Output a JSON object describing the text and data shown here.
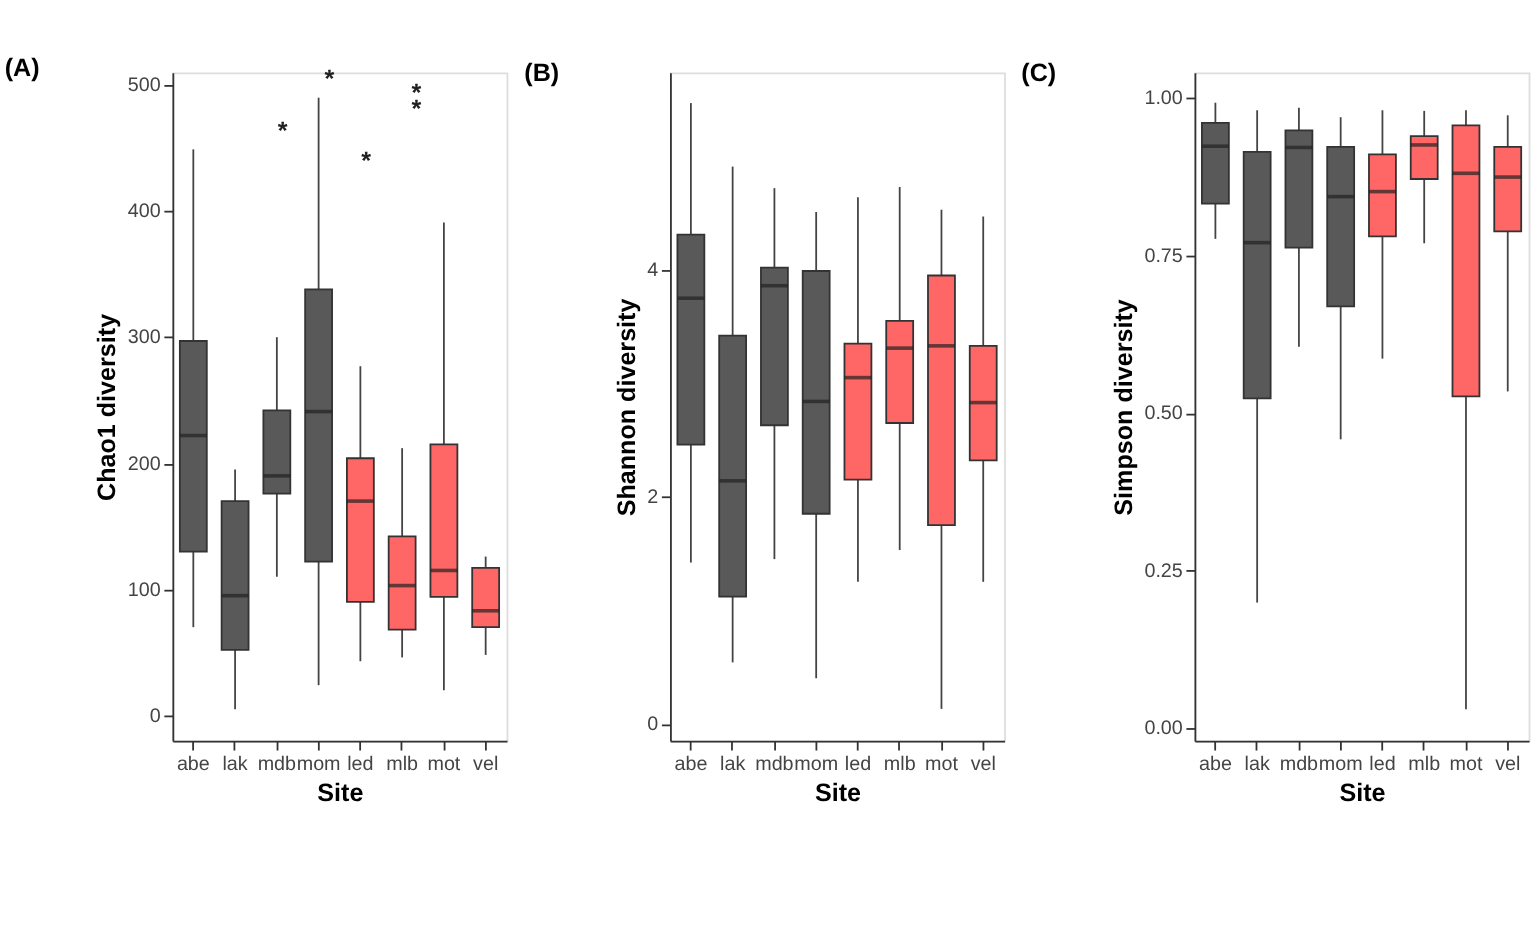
{
  "chart_data": [
    {
      "type": "box",
      "title": "(A)",
      "xlabel": "Site",
      "ylabel": "Chao1 diversity",
      "categories": [
        "abe",
        "lak",
        "mdb",
        "mom",
        "led",
        "mlb",
        "mot",
        "vel"
      ],
      "colors": [
        "#595959",
        "#595959",
        "#595959",
        "#595959",
        "#ff6666",
        "#ff6666",
        "#ff6666",
        "#ff6666"
      ],
      "boxes": [
        {
          "low": 70,
          "q1": 130,
          "median": 222,
          "q3": 297,
          "high": 449
        },
        {
          "low": 5,
          "q1": 52,
          "median": 95,
          "q3": 170,
          "high": 195
        },
        {
          "low": 110,
          "q1": 176,
          "median": 190,
          "q3": 242,
          "high": 300
        },
        {
          "low": 24,
          "q1": 122,
          "median": 241,
          "q3": 338,
          "high": 490
        },
        {
          "low": 43,
          "q1": 90,
          "median": 170,
          "q3": 204,
          "high": 277
        },
        {
          "low": 46,
          "q1": 68,
          "median": 103,
          "q3": 142,
          "high": 212
        },
        {
          "low": 20,
          "q1": 94,
          "median": 115,
          "q3": 215,
          "high": 391
        },
        {
          "low": 48,
          "q1": 70,
          "median": 83,
          "q3": 117,
          "high": 126
        }
      ],
      "ylim": [
        -20,
        510
      ],
      "yticks": [
        0,
        100,
        200,
        300,
        400,
        500
      ],
      "grid": false,
      "annotations": [
        "*",
        "*",
        "*",
        "*",
        "*"
      ]
    },
    {
      "type": "box",
      "title": "(B)",
      "xlabel": "Site",
      "ylabel": "Shannon diversity",
      "categories": [
        "abe",
        "lak",
        "mdb",
        "mom",
        "led",
        "mlb",
        "mot",
        "vel"
      ],
      "colors": [
        "#595959",
        "#595959",
        "#595959",
        "#595959",
        "#ff6666",
        "#ff6666",
        "#ff6666",
        "#ff6666"
      ],
      "boxes": [
        {
          "low": 1.42,
          "q1": 2.46,
          "median": 3.75,
          "q3": 4.31,
          "high": 5.47
        },
        {
          "low": 0.54,
          "q1": 1.12,
          "median": 2.14,
          "q3": 3.42,
          "high": 4.91
        },
        {
          "low": 1.45,
          "q1": 2.63,
          "median": 3.86,
          "q3": 4.02,
          "high": 4.72
        },
        {
          "low": 0.4,
          "q1": 1.85,
          "median": 2.84,
          "q3": 3.99,
          "high": 4.51
        },
        {
          "low": 1.25,
          "q1": 2.15,
          "median": 3.05,
          "q3": 3.35,
          "high": 4.64
        },
        {
          "low": 1.53,
          "q1": 2.65,
          "median": 3.31,
          "q3": 3.55,
          "high": 4.73
        },
        {
          "low": 0.13,
          "q1": 1.75,
          "median": 3.33,
          "q3": 3.95,
          "high": 4.53
        },
        {
          "low": 1.25,
          "q1": 2.32,
          "median": 2.83,
          "q3": 3.33,
          "high": 4.47
        }
      ],
      "ylim": [
        -0.15,
        5.74
      ],
      "yticks": [
        0,
        2,
        4
      ],
      "grid": false
    },
    {
      "type": "box",
      "title": "(C)",
      "xlabel": "Site",
      "ylabel": "Simpson diversity",
      "categories": [
        "abe",
        "lak",
        "mdb",
        "mom",
        "led",
        "mlb",
        "mot",
        "vel"
      ],
      "colors": [
        "#595959",
        "#595959",
        "#595959",
        "#595959",
        "#ff6666",
        "#ff6666",
        "#ff6666",
        "#ff6666"
      ],
      "boxes": [
        {
          "low": 0.776,
          "q1": 0.832,
          "median": 0.923,
          "q3": 0.96,
          "high": 0.992
        },
        {
          "low": 0.199,
          "q1": 0.523,
          "median": 0.77,
          "q3": 0.914,
          "high": 0.98
        },
        {
          "low": 0.605,
          "q1": 0.762,
          "median": 0.921,
          "q3": 0.948,
          "high": 0.984
        },
        {
          "low": 0.458,
          "q1": 0.669,
          "median": 0.843,
          "q3": 0.922,
          "high": 0.969
        },
        {
          "low": 0.586,
          "q1": 0.78,
          "median": 0.851,
          "q3": 0.91,
          "high": 0.98
        },
        {
          "low": 0.769,
          "q1": 0.871,
          "median": 0.925,
          "q3": 0.939,
          "high": 0.979
        },
        {
          "low": 0.03,
          "q1": 0.526,
          "median": 0.88,
          "q3": 0.956,
          "high": 0.98
        },
        {
          "low": 0.534,
          "q1": 0.788,
          "median": 0.874,
          "q3": 0.922,
          "high": 0.972
        }
      ],
      "ylim": [
        -0.02,
        1.04
      ],
      "yticks": [
        {
          "value": 0,
          "label": "0.00"
        },
        {
          "value": 0.25,
          "label": "0.25"
        },
        {
          "value": 0.5,
          "label": "0.50"
        },
        {
          "value": 0.75,
          "label": "0.75"
        },
        {
          "value": 1,
          "label": "1.00"
        }
      ],
      "grid": false
    }
  ]
}
